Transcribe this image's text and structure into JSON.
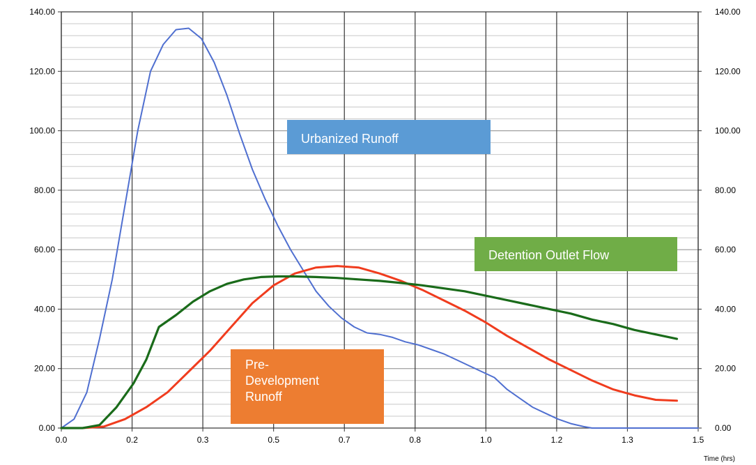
{
  "chart_data": {
    "type": "line",
    "xlabel": "Time (hrs)",
    "ylabel": "",
    "xlim": [
      0,
      1.5
    ],
    "ylim": [
      0,
      140
    ],
    "x_ticks": [
      {
        "value": 0.0,
        "label": "0.0"
      },
      {
        "value": 0.1667,
        "label": "0.2"
      },
      {
        "value": 0.3333,
        "label": "0.3"
      },
      {
        "value": 0.5,
        "label": "0.5"
      },
      {
        "value": 0.6667,
        "label": "0.7"
      },
      {
        "value": 0.8333,
        "label": "0.8"
      },
      {
        "value": 1.0,
        "label": "1.0"
      },
      {
        "value": 1.1667,
        "label": "1.2"
      },
      {
        "value": 1.3333,
        "label": "1.3"
      },
      {
        "value": 1.5,
        "label": "1.5"
      }
    ],
    "y_ticks": [
      {
        "value": 0,
        "label": "0.00"
      },
      {
        "value": 20,
        "label": "20.00"
      },
      {
        "value": 40,
        "label": "40.00"
      },
      {
        "value": 60,
        "label": "60.00"
      },
      {
        "value": 80,
        "label": "80.00"
      },
      {
        "value": 100,
        "label": "100.00"
      },
      {
        "value": 120,
        "label": "120.00"
      },
      {
        "value": 140,
        "label": "140.00"
      }
    ],
    "grid": true,
    "series": [
      {
        "name": "Urbanized Runoff",
        "color": "#4f6fd0",
        "points": [
          [
            0,
            0
          ],
          [
            0.03,
            3
          ],
          [
            0.06,
            12
          ],
          [
            0.09,
            30
          ],
          [
            0.12,
            50
          ],
          [
            0.15,
            75
          ],
          [
            0.18,
            100
          ],
          [
            0.21,
            120
          ],
          [
            0.24,
            129
          ],
          [
            0.27,
            134
          ],
          [
            0.3,
            134.5
          ],
          [
            0.33,
            131
          ],
          [
            0.36,
            123
          ],
          [
            0.39,
            112
          ],
          [
            0.42,
            99
          ],
          [
            0.45,
            87
          ],
          [
            0.48,
            77
          ],
          [
            0.51,
            68
          ],
          [
            0.54,
            60
          ],
          [
            0.57,
            53
          ],
          [
            0.6,
            46
          ],
          [
            0.63,
            41
          ],
          [
            0.66,
            37
          ],
          [
            0.69,
            34
          ],
          [
            0.72,
            32
          ],
          [
            0.75,
            31.5
          ],
          [
            0.78,
            30.5
          ],
          [
            0.81,
            29
          ],
          [
            0.84,
            28
          ],
          [
            0.87,
            26.5
          ],
          [
            0.9,
            25
          ],
          [
            0.93,
            23
          ],
          [
            0.96,
            21
          ],
          [
            0.99,
            19
          ],
          [
            1.02,
            17
          ],
          [
            1.05,
            13
          ],
          [
            1.08,
            10
          ],
          [
            1.11,
            7
          ],
          [
            1.14,
            5
          ],
          [
            1.17,
            3
          ],
          [
            1.2,
            1.5
          ],
          [
            1.23,
            0.5
          ],
          [
            1.25,
            0
          ],
          [
            1.35,
            0
          ],
          [
            1.5,
            0
          ]
        ]
      },
      {
        "name": "Pre-Development Runoff",
        "color": "#f03c1e",
        "points": [
          [
            0,
            0
          ],
          [
            0.05,
            0
          ],
          [
            0.1,
            0.5
          ],
          [
            0.15,
            3
          ],
          [
            0.2,
            7
          ],
          [
            0.25,
            12
          ],
          [
            0.3,
            19
          ],
          [
            0.35,
            26
          ],
          [
            0.4,
            34
          ],
          [
            0.45,
            42
          ],
          [
            0.5,
            48
          ],
          [
            0.55,
            52
          ],
          [
            0.6,
            54
          ],
          [
            0.65,
            54.5
          ],
          [
            0.7,
            54
          ],
          [
            0.75,
            52
          ],
          [
            0.8,
            49.5
          ],
          [
            0.85,
            46.5
          ],
          [
            0.9,
            43
          ],
          [
            0.95,
            39.5
          ],
          [
            1.0,
            35.5
          ],
          [
            1.05,
            31
          ],
          [
            1.1,
            27
          ],
          [
            1.15,
            23
          ],
          [
            1.2,
            19.5
          ],
          [
            1.25,
            16
          ],
          [
            1.3,
            13
          ],
          [
            1.35,
            11
          ],
          [
            1.4,
            9.5
          ],
          [
            1.45,
            9.2
          ]
        ]
      },
      {
        "name": "Detention Outlet Flow",
        "color": "#1a6b1a",
        "points": [
          [
            0,
            0
          ],
          [
            0.05,
            0
          ],
          [
            0.09,
            1
          ],
          [
            0.13,
            7
          ],
          [
            0.17,
            15
          ],
          [
            0.2,
            23
          ],
          [
            0.23,
            34
          ],
          [
            0.27,
            38
          ],
          [
            0.31,
            42.5
          ],
          [
            0.35,
            46
          ],
          [
            0.39,
            48.5
          ],
          [
            0.43,
            50
          ],
          [
            0.47,
            50.8
          ],
          [
            0.51,
            51
          ],
          [
            0.55,
            51
          ],
          [
            0.6,
            50.8
          ],
          [
            0.65,
            50.5
          ],
          [
            0.7,
            50
          ],
          [
            0.75,
            49.5
          ],
          [
            0.8,
            48.8
          ],
          [
            0.85,
            48
          ],
          [
            0.9,
            47
          ],
          [
            0.95,
            46
          ],
          [
            1.0,
            44.5
          ],
          [
            1.05,
            43
          ],
          [
            1.1,
            41.5
          ],
          [
            1.15,
            40
          ],
          [
            1.2,
            38.5
          ],
          [
            1.25,
            36.5
          ],
          [
            1.3,
            35
          ],
          [
            1.35,
            33
          ],
          [
            1.4,
            31.5
          ],
          [
            1.45,
            30
          ]
        ]
      }
    ],
    "annotations": [
      {
        "id": "urbanized",
        "lines": [
          "Urbanized Runoff"
        ],
        "color": "#5b9bd5"
      },
      {
        "id": "predev",
        "lines": [
          "Pre-",
          "Development",
          "Runoff"
        ],
        "color": "#ed7d31"
      },
      {
        "id": "detention",
        "lines": [
          "Detention Outlet Flow"
        ],
        "color": "#70ad47"
      }
    ]
  }
}
